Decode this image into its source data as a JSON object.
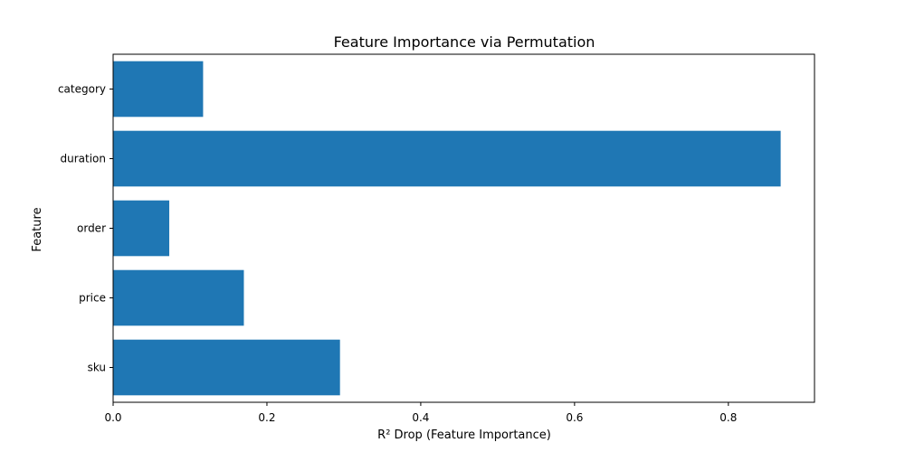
{
  "chart_data": {
    "type": "bar",
    "orientation": "horizontal",
    "title": "Feature Importance via Permutation",
    "xlabel": "R² Drop (Feature Importance)",
    "ylabel": "Feature",
    "categories": [
      "category",
      "duration",
      "order",
      "price",
      "sku"
    ],
    "values": [
      0.117,
      0.868,
      0.073,
      0.17,
      0.295
    ],
    "xlim": [
      0,
      0.912
    ],
    "xticks": [
      0.0,
      0.2,
      0.4,
      0.6,
      0.8
    ],
    "xtick_labels": [
      "0.0",
      "0.2",
      "0.4",
      "0.6",
      "0.8"
    ],
    "grid": false,
    "bar_color": "#1f77b4"
  }
}
